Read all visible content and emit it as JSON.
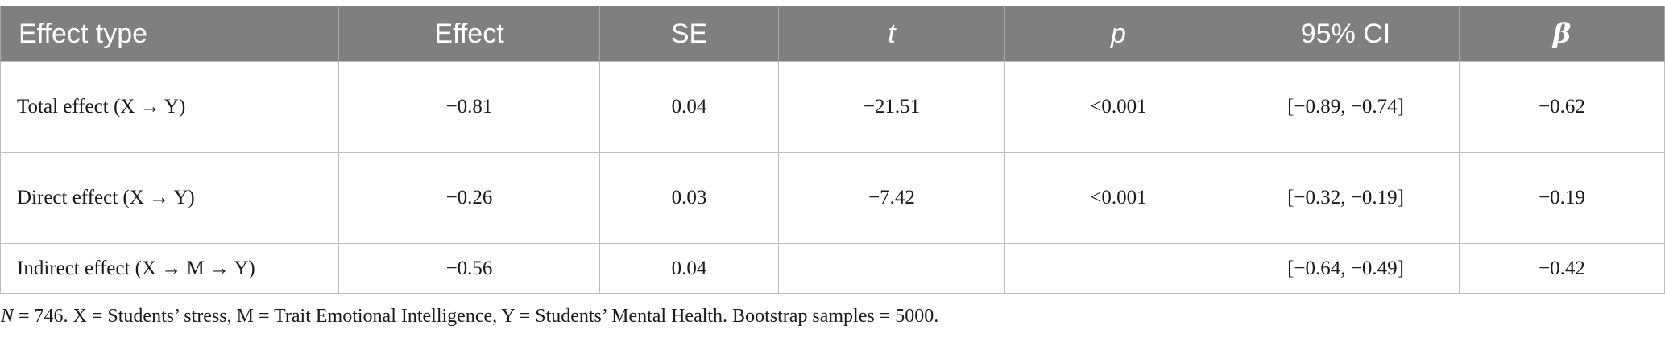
{
  "table": {
    "headers": [
      "Effect type",
      "Effect",
      "SE",
      "t",
      "p",
      "95% CI",
      "β"
    ],
    "rows": [
      {
        "effect_type": "Total effect (X → Y)",
        "effect": "−0.81",
        "se": "0.04",
        "t": "−21.51",
        "p": "<0.001",
        "ci": "[−0.89, −0.74]",
        "beta": "−0.62"
      },
      {
        "effect_type": "Direct effect (X → Y)",
        "effect": "−0.26",
        "se": "0.03",
        "t": "−7.42",
        "p": "<0.001",
        "ci": "[−0.32, −0.19]",
        "beta": "−0.19"
      },
      {
        "effect_type": "Indirect effect (X → M → Y)",
        "effect": "−0.56",
        "se": "0.04",
        "t": "",
        "p": "",
        "ci": "[−0.64, −0.49]",
        "beta": "−0.42"
      }
    ]
  },
  "note": {
    "n_label": "N",
    "text": " = 746. X = Students’ stress, M = Trait Emotional Intelligence, Y = Students’ Mental Health. Bootstrap samples = 5000."
  },
  "colors": {
    "header_bg": "#7f7f7f",
    "header_text": "#ffffff",
    "grid_line": "#bdbdbd"
  }
}
